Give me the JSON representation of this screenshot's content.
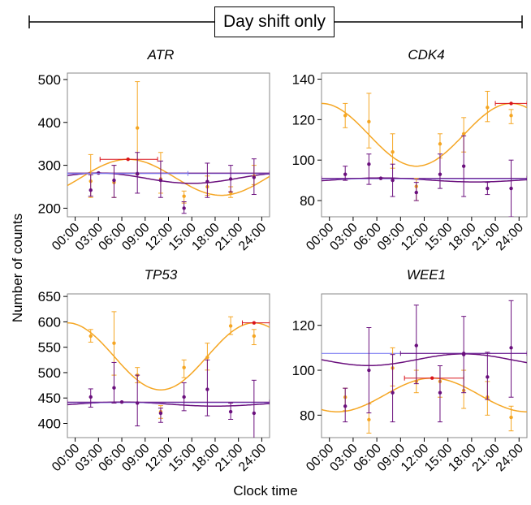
{
  "header": {
    "label": "Day shift only"
  },
  "axis_labels": {
    "y": "Number of counts",
    "x": "Clock time"
  },
  "colors": {
    "orange": "#f5a623",
    "purple": "#6a0f7d",
    "blue": "#7f7ff2",
    "red": "#d9141b"
  },
  "chart_data": [
    {
      "type": "scatter",
      "title": "ATR",
      "x_ticks": [
        "00:00",
        "03:00",
        "06:00",
        "09:00",
        "12:00",
        "15:00",
        "18:00",
        "21:00",
        "24:00"
      ],
      "y_ticks": [
        200,
        300,
        400,
        500
      ],
      "ylim": [
        180,
        515
      ],
      "xlim_hours": [
        -1,
        25
      ],
      "series": [
        {
          "color": "orange",
          "points": [
            [
              2,
              263,
              325,
              225
            ],
            [
              5,
              260,
              300,
              225
            ],
            [
              8,
              387,
              495,
              280
            ],
            [
              11,
              268,
              330,
              235
            ],
            [
              14,
              228,
              240,
              212
            ],
            [
              17,
              250,
              275,
              230
            ],
            [
              20,
              237,
              250,
              225
            ],
            [
              23,
              275,
              300,
              255
            ]
          ]
        },
        {
          "color": "purple",
          "points": [
            [
              2,
              242,
              278,
              228
            ],
            [
              5,
              265,
              300,
              225
            ],
            [
              8,
              280,
              330,
              235
            ],
            [
              11,
              265,
              310,
              225
            ],
            [
              14,
              200,
              215,
              188
            ],
            [
              17,
              262,
              305,
              225
            ],
            [
              20,
              268,
              300,
              238
            ],
            [
              23,
              272,
              315,
              232
            ]
          ]
        }
      ],
      "fits": [
        {
          "color": "orange",
          "mesor": 272,
          "amplitude": 42,
          "peak_hour": 6.8
        },
        {
          "color": "purple",
          "mesor": 270,
          "amplitude": 12,
          "peak_hour": 3.0
        },
        {
          "color": "blue",
          "mesor": 281,
          "amplitude": 0,
          "peak_hour": 0
        }
      ],
      "peak_markers": [
        {
          "color": "red",
          "hour": 6.8,
          "value": 314,
          "range": [
            3.2,
            10.6
          ]
        },
        {
          "color": "purple",
          "hour": 3.0,
          "value": 282,
          "range": [
            -1,
            25
          ]
        },
        {
          "color": "blue",
          "hour": 8.0,
          "value": 281,
          "range": [
            -1,
            14.5
          ]
        }
      ]
    },
    {
      "type": "scatter",
      "title": "CDK4",
      "x_ticks": [
        "00:00",
        "03:00",
        "06:00",
        "09:00",
        "12:00",
        "15:00",
        "18:00",
        "21:00",
        "24:00"
      ],
      "y_ticks": [
        80,
        100,
        120,
        140
      ],
      "ylim": [
        72,
        143
      ],
      "xlim_hours": [
        -1,
        25
      ],
      "series": [
        {
          "color": "orange",
          "points": [
            [
              2,
              122,
              128,
              116
            ],
            [
              5,
              119,
              133,
              106
            ],
            [
              8,
              104,
              113,
              96
            ],
            [
              11,
              87,
              91,
              80
            ],
            [
              14,
              108,
              113,
              101
            ],
            [
              17,
              113,
              121,
              104
            ],
            [
              20,
              126,
              134,
              119
            ],
            [
              23,
              122,
              125,
              118
            ]
          ]
        },
        {
          "color": "purple",
          "points": [
            [
              2,
              93,
              97,
              90
            ],
            [
              5,
              98,
              103,
              88
            ],
            [
              8,
              90,
              98,
              82
            ],
            [
              11,
              84,
              89,
              80
            ],
            [
              14,
              93,
              103,
              86
            ],
            [
              17,
              97,
              112,
              82
            ],
            [
              20,
              86,
              89,
              83
            ],
            [
              23,
              86,
              100,
              72
            ]
          ]
        }
      ],
      "fits": [
        {
          "color": "orange",
          "mesor": 112.5,
          "amplitude": 15.5,
          "peak_hour": 23.0
        },
        {
          "color": "purple",
          "mesor": 90.2,
          "amplitude": 1.0,
          "peak_hour": 6.5
        },
        {
          "color": "blue",
          "mesor": 90.8,
          "amplitude": 0,
          "peak_hour": 0
        }
      ],
      "peak_markers": [
        {
          "color": "red",
          "hour": 23.0,
          "value": 128,
          "range": [
            21.0,
            25
          ]
        },
        {
          "color": "purple",
          "hour": 6.5,
          "value": 91,
          "range": [
            -1,
            25
          ]
        }
      ]
    },
    {
      "type": "scatter",
      "title": "TP53",
      "x_ticks": [
        "00:00",
        "03:00",
        "06:00",
        "09:00",
        "12:00",
        "15:00",
        "18:00",
        "21:00",
        "24:00"
      ],
      "y_ticks": [
        400,
        450,
        500,
        550,
        600,
        650
      ],
      "ylim": [
        372,
        655
      ],
      "xlim_hours": [
        -1,
        25
      ],
      "series": [
        {
          "color": "orange",
          "points": [
            [
              2,
              572,
              585,
              560
            ],
            [
              5,
              558,
              620,
              495
            ],
            [
              8,
              495,
              510,
              480
            ],
            [
              11,
              423,
              435,
              410
            ],
            [
              14,
              510,
              525,
              490
            ],
            [
              17,
              530,
              558,
              505
            ],
            [
              20,
              592,
              610,
              575
            ],
            [
              23,
              572,
              585,
              555
            ]
          ]
        },
        {
          "color": "purple",
          "points": [
            [
              2,
              452,
              468,
              432
            ],
            [
              5,
              470,
              520,
              440
            ],
            [
              8,
              440,
              495,
              395
            ],
            [
              11,
              420,
              430,
              402
            ],
            [
              14,
              452,
              480,
              425
            ],
            [
              17,
              467,
              525,
              415
            ],
            [
              20,
              423,
              440,
              408
            ],
            [
              23,
              420,
              485,
              370
            ]
          ]
        }
      ],
      "fits": [
        {
          "color": "orange",
          "mesor": 532,
          "amplitude": 66,
          "peak_hour": 23.0
        },
        {
          "color": "purple",
          "mesor": 438,
          "amplitude": 4,
          "peak_hour": 6.0
        },
        {
          "color": "blue",
          "mesor": 441,
          "amplitude": 0,
          "peak_hour": 0
        }
      ],
      "peak_markers": [
        {
          "color": "red",
          "hour": 23.0,
          "value": 598,
          "range": [
            21.5,
            25
          ]
        },
        {
          "color": "purple",
          "hour": 6.0,
          "value": 442,
          "range": [
            -1,
            25
          ]
        }
      ]
    },
    {
      "type": "scatter",
      "title": "WEE1",
      "x_ticks": [
        "00:00",
        "03:00",
        "06:00",
        "09:00",
        "12:00",
        "15:00",
        "18:00",
        "21:00",
        "24:00"
      ],
      "y_ticks": [
        80,
        100,
        120
      ],
      "ylim": [
        70,
        134
      ],
      "xlim_hours": [
        -1,
        25
      ],
      "series": [
        {
          "color": "orange",
          "points": [
            [
              2,
              88,
              92,
              82
            ],
            [
              5,
              78,
              85,
              72
            ],
            [
              8,
              101,
              110,
              93
            ],
            [
              11,
              95,
              100,
              90
            ],
            [
              14,
              95,
              102,
              88
            ],
            [
              17,
              91,
              100,
              83
            ],
            [
              20,
              88,
              95,
              80
            ],
            [
              23,
              79,
              84,
              73
            ]
          ]
        },
        {
          "color": "purple",
          "points": [
            [
              2,
              84,
              92,
              77
            ],
            [
              5,
              100,
              119,
              81
            ],
            [
              8,
              90,
              107,
              77
            ],
            [
              11,
              111,
              129,
              94
            ],
            [
              14,
              90,
              102,
              77
            ],
            [
              17,
              107,
              124,
              90
            ],
            [
              20,
              97,
              108,
              87
            ],
            [
              23,
              110,
              131,
              88
            ]
          ]
        }
      ],
      "fits": [
        {
          "color": "orange",
          "mesor": 89,
          "amplitude": 7.5,
          "peak_hour": 13.0
        },
        {
          "color": "purple",
          "mesor": 104.7,
          "amplitude": 2.6,
          "peak_hour": 17.0
        },
        {
          "color": "blue",
          "mesor": 107.5,
          "amplitude": 0,
          "peak_hour": 0
        }
      ],
      "peak_markers": [
        {
          "color": "red",
          "hour": 13.0,
          "value": 96.5,
          "range": [
            9.5,
            17.0
          ]
        },
        {
          "color": "purple",
          "hour": 17.0,
          "value": 107.5,
          "range": [
            9.0,
            25
          ]
        }
      ]
    }
  ]
}
